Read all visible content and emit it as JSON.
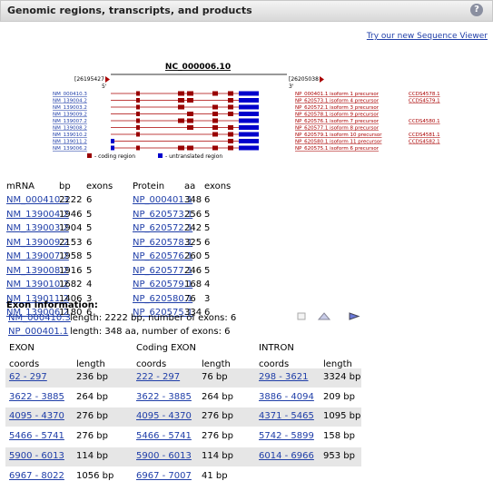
{
  "header": {
    "title": "Genomic regions, transcripts, and products",
    "help": "?"
  },
  "viewer_link": "Try our new Sequence Viewer",
  "diagram": {
    "accession": "NC_000006.10",
    "start": "[26195427",
    "end": "[26205038",
    "five_prime": "5'",
    "three_prime": "3'",
    "transcripts": [
      "NM_000410.3",
      "NM_139004.2",
      "NM_139003.2",
      "NM_139009.2",
      "NM_139007.2",
      "NM_139008.2",
      "NM_139010.2",
      "NM_139011.2",
      "NM_139006.2"
    ],
    "products": [
      {
        "label": "NP_000401.1  isoform 1 precursor",
        "ccds": "CCDS4578.1"
      },
      {
        "label": "NP_620573.1  isoform 4 precursor",
        "ccds": "CCDS4579.1"
      },
      {
        "label": "NP_620572.1  isoform 3 precursor"
      },
      {
        "label": "NP_620578.1  isoform 9 precursor"
      },
      {
        "label": "NP_620576.1  isoform 7 precursor",
        "ccds": "CCDS4580.1"
      },
      {
        "label": "NP_620577.1  isoform 8 precursor"
      },
      {
        "label": "NP_620579.1  isoform 10 precursor",
        "ccds": "CCDS4581.1"
      },
      {
        "label": "NP_620580.1  isoform 11 precursor",
        "ccds": "CCDS4582.1"
      },
      {
        "label": "NP_620575.1  isoform 6 precursor"
      }
    ],
    "legend": [
      "- coding region",
      "- untranslated region"
    ]
  },
  "transcript_table": {
    "columns": [
      "mRNA",
      "bp",
      "exons",
      "Protein",
      "aa",
      "exons"
    ],
    "rows": [
      [
        "NM_000410.3",
        2222,
        6,
        "NP_000401.1",
        348,
        6
      ],
      [
        "NM_139004.2",
        1946,
        5,
        "NP_620573.1",
        256,
        5
      ],
      [
        "NM_139003.2",
        1904,
        5,
        "NP_620572.1",
        242,
        5
      ],
      [
        "NM_139009.2",
        2153,
        6,
        "NP_620578.1",
        325,
        6
      ],
      [
        "NM_139007.2",
        1958,
        5,
        "NP_620576.1",
        260,
        5
      ],
      [
        "NM_139008.2",
        1916,
        5,
        "NP_620577.1",
        246,
        5
      ],
      [
        "NM_139010.2",
        1682,
        4,
        "NP_620579.1",
        168,
        4
      ],
      [
        "NM_139011.2",
        1406,
        3,
        "NP_620580.1",
        76,
        3
      ],
      [
        "NM_139006.2",
        1180,
        6,
        "NP_620575.1",
        334,
        6
      ]
    ]
  },
  "exon_info": {
    "title": "Exon information:",
    "mrna": {
      "accession": "NM_000410.3",
      "text": "length: 2222 bp, number of exons: 6"
    },
    "protein": {
      "accession": "NP_000401.1",
      "text": "length: 348 aa, number of exons: 6"
    }
  },
  "exon_table": {
    "groups": [
      "EXON",
      "Coding EXON",
      "INTRON"
    ],
    "columns": [
      "coords",
      "length",
      "coords",
      "length",
      "coords",
      "length"
    ],
    "rows": [
      [
        "62 - 297",
        "236 bp",
        "222 - 297",
        "76 bp",
        "298 - 3621",
        "3324 bp"
      ],
      [
        "3622 - 3885",
        "264 bp",
        "3622 - 3885",
        "264 bp",
        "3886 - 4094",
        "209 bp"
      ],
      [
        "4095 - 4370",
        "276 bp",
        "4095 - 4370",
        "276 bp",
        "4371 - 5465",
        "1095 bp"
      ],
      [
        "5466 - 5741",
        "276 bp",
        "5466 - 5741",
        "276 bp",
        "5742 - 5899",
        "158 bp"
      ],
      [
        "5900 - 6013",
        "114 bp",
        "5900 - 6013",
        "114 bp",
        "6014 - 6966",
        "953 bp"
      ],
      [
        "6967 - 8022",
        "1056 bp",
        "6967 - 7007",
        "41 bp"
      ]
    ]
  }
}
